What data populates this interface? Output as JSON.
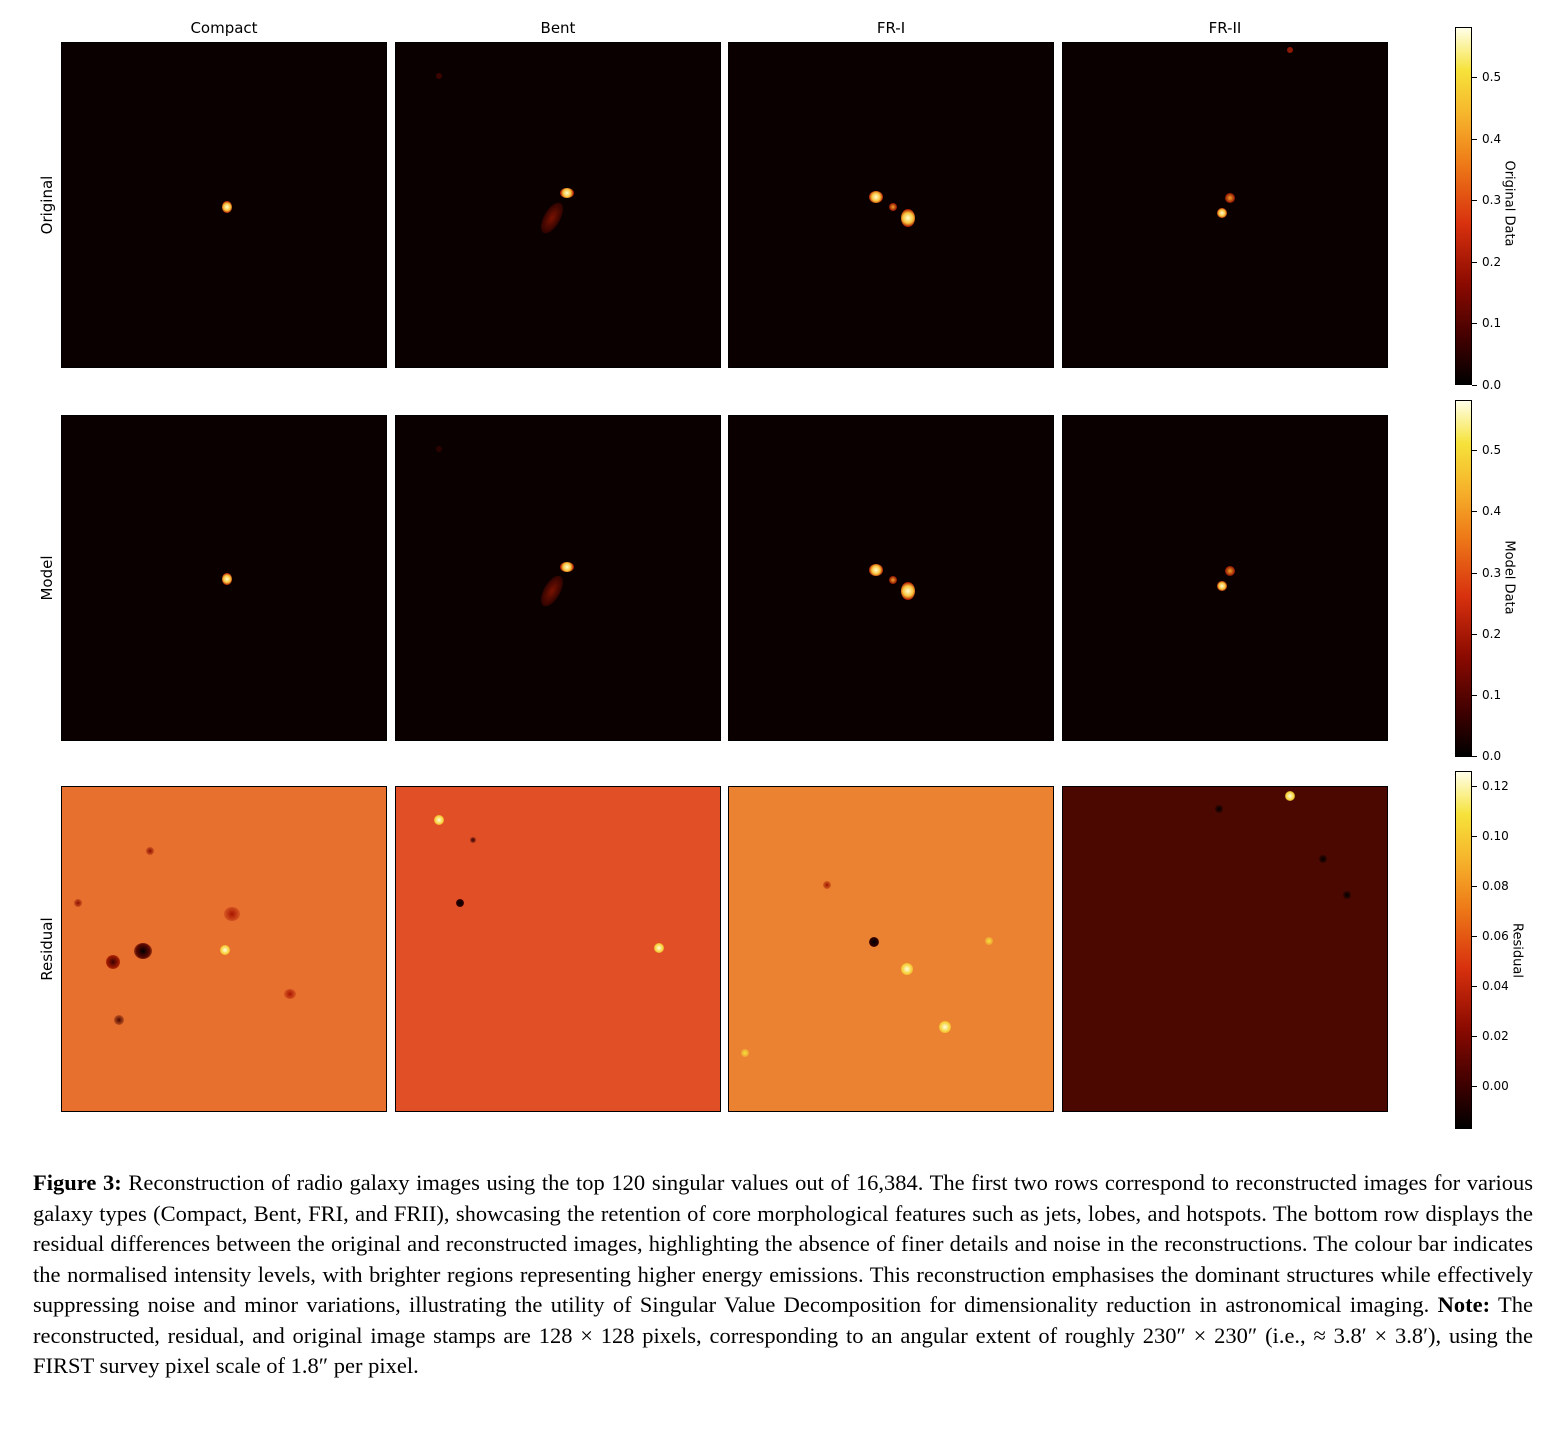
{
  "columns": [
    "Compact",
    "Bent",
    "FR-I",
    "FR-II"
  ],
  "rows": [
    "Original",
    "Model",
    "Residual"
  ],
  "colorbars": [
    {
      "label": "Original Data",
      "ticks": [
        "0.5",
        "0.4",
        "0.3",
        "0.2",
        "0.1",
        "0.0"
      ]
    },
    {
      "label": "Model Data",
      "ticks": [
        "0.5",
        "0.4",
        "0.3",
        "0.2",
        "0.1",
        "0.0"
      ]
    },
    {
      "label": "Residual",
      "ticks": [
        "0.12",
        "0.10",
        "0.08",
        "0.06",
        "0.04",
        "0.02",
        "0.00"
      ]
    }
  ],
  "caption": {
    "figure_label": "Figure 3:",
    "text": "Reconstruction of radio galaxy images using the top 120 singular values out of 16,384. The first two rows correspond to reconstructed images for various galaxy types (Compact, Bent, FRI, and FRII), showcasing the retention of core morphological features such as jets, lobes, and hotspots. The bottom row displays the residual differences between the original and reconstructed images, highlighting the absence of finer details and noise in the reconstructions. The colour bar indicates the normalised intensity levels, with brighter regions representing higher energy emissions. This reconstruction emphasises the dominant structures while effectively suppressing noise and minor variations, illustrating the utility of Singular Value Decomposition for dimensionality reduction in astronomical imaging.",
    "note_label": "Note:",
    "note_text": "The reconstructed, residual, and original image stamps are 128 × 128 pixels, corresponding to an angular extent of roughly 230″ × 230″ (i.e., ≈ 3.8′ × 3.8′), using the FIRST survey pixel scale of 1.8″ per pixel."
  }
}
